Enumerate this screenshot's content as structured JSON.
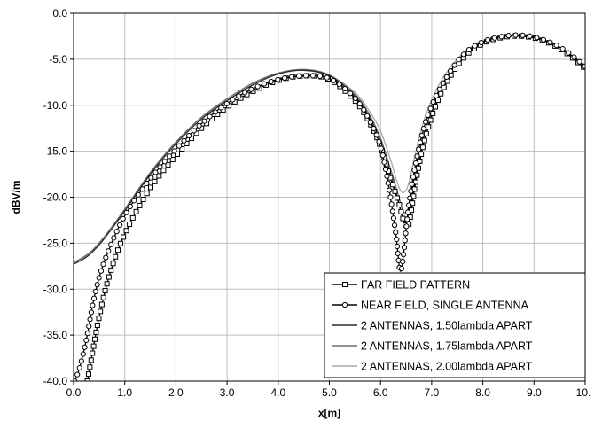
{
  "chart_data": {
    "type": "line",
    "title": "",
    "xlabel": "x[m]",
    "ylabel": "dBV/m",
    "xlim": [
      0,
      10
    ],
    "ylim": [
      -40,
      0
    ],
    "grid": true,
    "legend_position": "bottom-right",
    "x_tick_labels": [
      "0.0",
      "1.0",
      "2.0",
      "3.0",
      "4.0",
      "5.0",
      "6.0",
      "7.0",
      "8.0",
      "9.0",
      "10."
    ],
    "y_tick_labels": [
      "0.0",
      "-5.0",
      "-10.0",
      "-15.0",
      "-20.0",
      "-25.0",
      "-30.0",
      "-35.0",
      "-40.0"
    ],
    "series": [
      {
        "name": "FAR FIELD PATTERN",
        "color": "#000000",
        "marker": "square",
        "x": [
          0.27,
          0.35,
          0.5,
          0.7,
          1.0,
          1.5,
          2.0,
          2.5,
          3.0,
          3.5,
          4.0,
          4.5,
          5.0,
          5.5,
          5.8,
          6.0,
          6.2,
          6.35,
          6.45,
          6.55,
          6.7,
          6.9,
          7.2,
          7.6,
          8.0,
          8.4,
          8.8,
          9.2,
          9.6,
          10.0
        ],
        "y": [
          -40.0,
          -37.5,
          -33.0,
          -28.5,
          -24.0,
          -19.0,
          -15.5,
          -12.5,
          -10.2,
          -8.5,
          -7.3,
          -6.8,
          -7.2,
          -9.5,
          -12.0,
          -14.5,
          -18.0,
          -20.5,
          -22.5,
          -23.0,
          -18.0,
          -13.0,
          -8.5,
          -5.0,
          -3.3,
          -2.6,
          -2.5,
          -3.0,
          -4.2,
          -6.0
        ]
      },
      {
        "name": "NEAR FIELD, SINGLE ANTENNA",
        "color": "#000000",
        "marker": "circle",
        "x": [
          0.02,
          0.12,
          0.25,
          0.4,
          0.6,
          1.0,
          1.5,
          2.0,
          2.5,
          3.0,
          3.5,
          4.0,
          4.5,
          5.0,
          5.5,
          5.8,
          6.0,
          6.15,
          6.3,
          6.4,
          6.55,
          6.7,
          6.9,
          7.2,
          7.6,
          8.0,
          8.4,
          8.8,
          9.2,
          9.6,
          10.0
        ],
        "y": [
          -40.0,
          -38.5,
          -35.5,
          -31.0,
          -27.0,
          -22.0,
          -18.0,
          -14.8,
          -12.0,
          -9.8,
          -8.2,
          -7.2,
          -6.8,
          -7.1,
          -9.2,
          -11.8,
          -14.5,
          -18.5,
          -24.0,
          -28.0,
          -21.0,
          -16.0,
          -11.5,
          -7.8,
          -4.6,
          -3.1,
          -2.5,
          -2.4,
          -2.9,
          -4.0,
          -5.8
        ]
      },
      {
        "name": "2 ANTENNAS, 1.50lambda APART",
        "color": "#2a2a2a",
        "marker": "none",
        "x": [
          0.0,
          0.3,
          0.6,
          1.0,
          1.5,
          2.0,
          2.5,
          3.0,
          3.5,
          4.0,
          4.5,
          5.0,
          5.5,
          5.8,
          6.0,
          6.2,
          6.35,
          6.45,
          6.55,
          6.7,
          6.9,
          7.2,
          7.6,
          8.0,
          8.4,
          8.8,
          9.2,
          9.6,
          10.0
        ],
        "y": [
          -27.3,
          -26.3,
          -24.5,
          -21.5,
          -17.5,
          -14.2,
          -11.5,
          -9.5,
          -7.8,
          -6.6,
          -6.2,
          -6.8,
          -9.0,
          -11.5,
          -14.0,
          -17.5,
          -20.5,
          -22.5,
          -22.0,
          -17.5,
          -12.8,
          -8.3,
          -5.0,
          -3.3,
          -2.6,
          -2.5,
          -3.0,
          -4.2,
          -5.8
        ]
      },
      {
        "name": "2 ANTENNAS, 1.75lambda APART",
        "color": "#6e6e6e",
        "marker": "none",
        "x": [
          0.0,
          0.3,
          0.6,
          1.0,
          1.5,
          2.0,
          2.5,
          3.0,
          3.5,
          4.0,
          4.5,
          5.0,
          5.5,
          5.8,
          6.0,
          6.2,
          6.35,
          6.45,
          6.55,
          6.7,
          6.9,
          7.2,
          7.6,
          8.0,
          8.4,
          8.8,
          9.2,
          9.6,
          10.0
        ],
        "y": [
          -27.1,
          -26.1,
          -24.3,
          -21.3,
          -17.3,
          -14.0,
          -11.3,
          -9.3,
          -7.6,
          -6.5,
          -6.1,
          -6.7,
          -8.8,
          -11.2,
          -13.6,
          -17.0,
          -19.8,
          -21.6,
          -21.0,
          -16.8,
          -12.3,
          -8.0,
          -4.8,
          -3.2,
          -2.6,
          -2.5,
          -3.0,
          -4.1,
          -5.7
        ]
      },
      {
        "name": "2 ANTENNAS, 2.00lambda APART",
        "color": "#a8a8a8",
        "marker": "none",
        "x": [
          0.0,
          0.3,
          0.6,
          1.0,
          1.5,
          2.0,
          2.5,
          3.0,
          3.5,
          4.0,
          4.5,
          5.0,
          5.5,
          5.8,
          6.0,
          6.2,
          6.35,
          6.45,
          6.55,
          6.7,
          6.9,
          7.2,
          7.6,
          8.0,
          8.4,
          8.8,
          9.2,
          9.6,
          10.0
        ],
        "y": [
          -27.2,
          -26.2,
          -24.4,
          -21.4,
          -17.4,
          -14.1,
          -11.4,
          -9.4,
          -7.7,
          -6.5,
          -6.2,
          -6.8,
          -8.6,
          -10.8,
          -12.8,
          -16.0,
          -18.8,
          -19.5,
          -18.5,
          -14.8,
          -10.8,
          -7.2,
          -4.4,
          -3.0,
          -2.5,
          -2.5,
          -3.0,
          -4.1,
          -5.6
        ]
      }
    ]
  }
}
